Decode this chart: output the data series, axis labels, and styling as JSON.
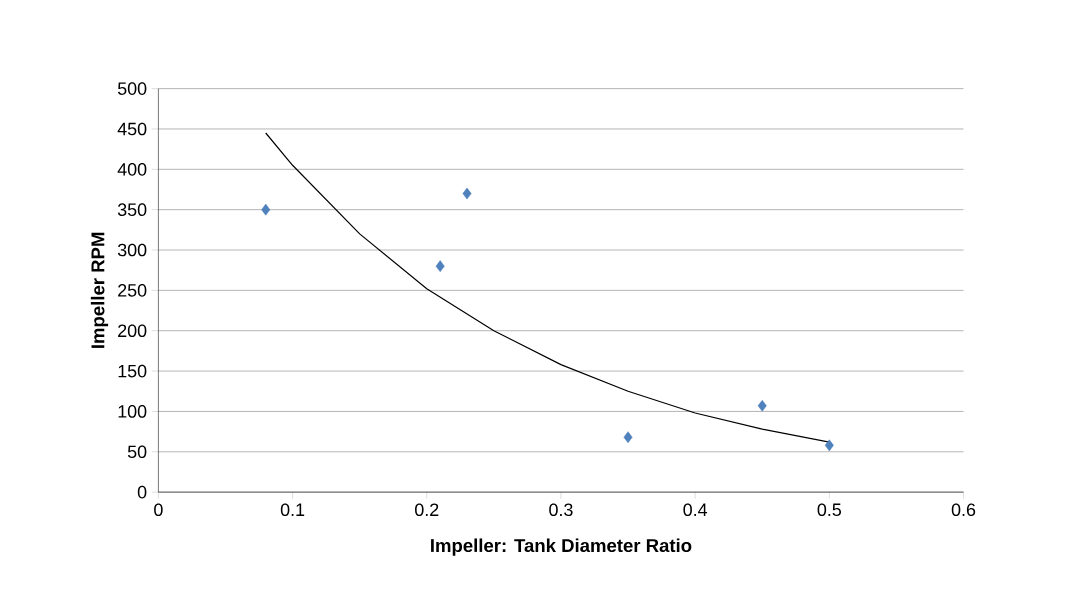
{
  "chart_data": {
    "type": "scatter",
    "xlabel": "Impeller: Tank Diameter Ratio",
    "ylabel": "Impeller RPM",
    "xlim": [
      0,
      0.6
    ],
    "xticks": [
      0,
      0.1,
      0.2,
      0.3,
      0.4,
      0.5,
      0.6
    ],
    "ylim": [
      0,
      500
    ],
    "yticks": [
      0,
      50,
      100,
      150,
      200,
      250,
      300,
      350,
      400,
      450,
      500
    ],
    "grid": "y",
    "series": [
      {
        "type": "scatter",
        "color": "#4f81bd",
        "marker": "diamond",
        "x": [
          0.08,
          0.21,
          0.23,
          0.35,
          0.45,
          0.5
        ],
        "values": [
          350,
          280,
          370,
          68,
          107,
          58
        ]
      },
      {
        "type": "line",
        "color": "#000000",
        "marker": "none",
        "line_style": "solid",
        "x": [
          0.08,
          0.1,
          0.15,
          0.2,
          0.25,
          0.3,
          0.35,
          0.4,
          0.45,
          0.5
        ],
        "values": [
          445,
          405,
          320,
          252,
          200,
          158,
          125,
          98,
          78,
          62
        ]
      }
    ]
  }
}
